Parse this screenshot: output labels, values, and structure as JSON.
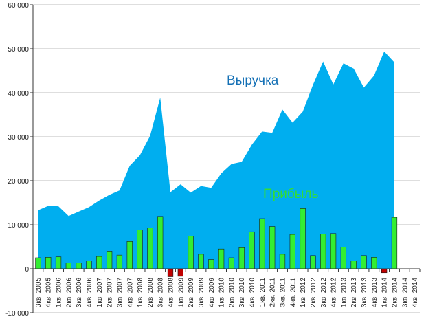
{
  "chart_data": {
    "type": "area",
    "title": "",
    "xlabel": "",
    "ylabel": "",
    "ylim": [
      -10000,
      60000
    ],
    "ytick_values": [
      -10000,
      0,
      10000,
      20000,
      30000,
      40000,
      50000,
      60000
    ],
    "ytick_labels": [
      "-10 000",
      "0",
      "10 000",
      "20 000",
      "30 000",
      "40 000",
      "50 000",
      "60 000"
    ],
    "grid": true,
    "categories": [
      "3кв. 2005",
      "4кв. 2005",
      "1кв. 2006",
      "2кв. 2006",
      "3кв. 2006",
      "4кв. 2006",
      "1кв. 2007",
      "2кв. 2007",
      "3кв. 2007",
      "4кв. 2007",
      "1кв. 2008",
      "2кв. 2008",
      "3кв. 2008",
      "4кв. 2008",
      "1кв. 2009",
      "2кв. 2009",
      "3кв. 2009",
      "4кв. 2009",
      "1кв. 2010",
      "2кв. 2010",
      "3кв. 2010",
      "4кв. 2010",
      "1кв. 2011",
      "2кв. 2011",
      "3кв. 2011",
      "4кв. 2011",
      "1кв. 2012",
      "2кв. 2012",
      "3кв. 2012",
      "4кв. 2012",
      "1кв. 2013",
      "2кв. 2013",
      "3кв. 2013",
      "4кв. 2013",
      "1кв. 2014",
      "2кв. 2014",
      "3кв. 2014",
      "4кв. 2014"
    ],
    "series": [
      {
        "name": "Выручка",
        "kind": "area",
        "color": "#00AEEF",
        "values": [
          13300,
          14300,
          14200,
          12000,
          13000,
          14000,
          15500,
          16800,
          17800,
          23400,
          25800,
          30200,
          38900,
          17400,
          19200,
          17300,
          18800,
          18400,
          21700,
          23800,
          24300,
          28200,
          31200,
          30900,
          36200,
          33200,
          35700,
          41800,
          47100,
          41900,
          46700,
          45500,
          41200,
          43900,
          49400,
          46900,
          null,
          null
        ]
      },
      {
        "name": "Прибыль",
        "kind": "bar",
        "color": "#33EE33",
        "negative_color": "#C00000",
        "values": [
          2500,
          2600,
          2700,
          1300,
          1300,
          1800,
          2800,
          4000,
          3100,
          6200,
          8800,
          9300,
          11900,
          -1800,
          -1700,
          7400,
          3300,
          2100,
          4500,
          2500,
          4800,
          8400,
          11400,
          9600,
          3300,
          7800,
          13700,
          3000,
          7900,
          8000,
          4900,
          1800,
          3000,
          2600,
          -900,
          11700,
          null,
          null
        ]
      }
    ]
  },
  "colors": {
    "area": "#00AEEF",
    "bar_positive": "#33EE33",
    "bar_negative": "#C00000",
    "bar_stroke": "#1A1A1A",
    "gridline": "#BDBDBD",
    "area_label": "#1470B5",
    "bar_label": "#33DD33"
  }
}
